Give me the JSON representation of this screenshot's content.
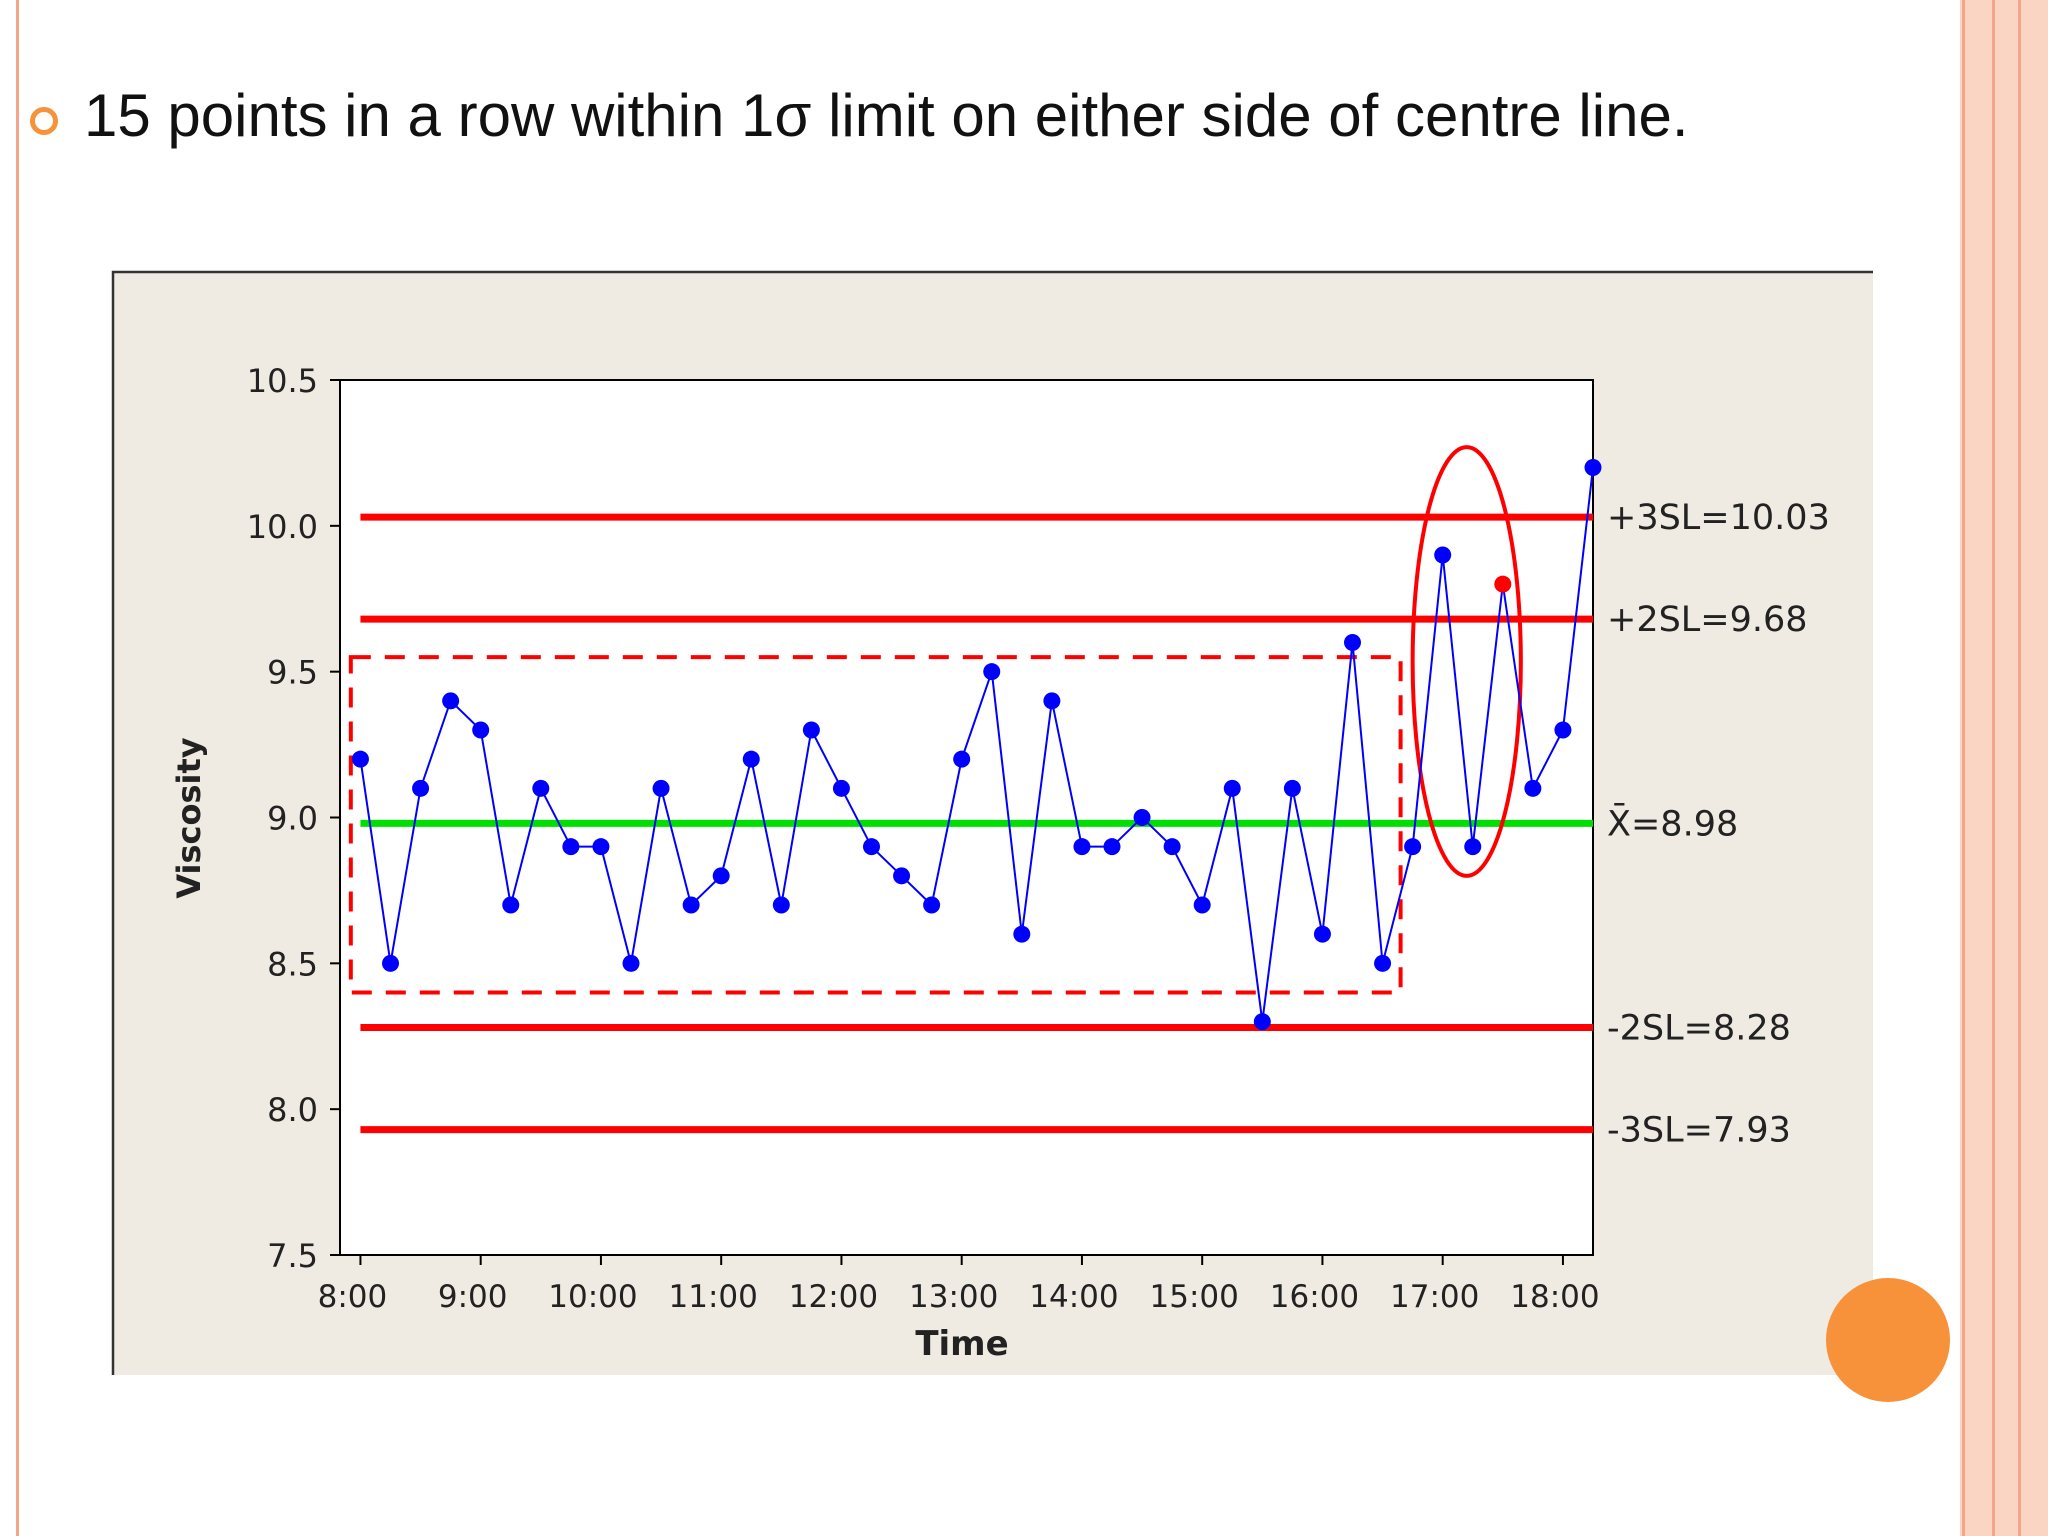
{
  "slide": {
    "heading": "15 points in a row within 1σ limit on either side of centre line.",
    "bullet_icon": "ring-bullet-icon",
    "colors": {
      "accent": "#f7923a",
      "frame_line": "#f4a58a",
      "frame_band": "#fbd5c4"
    }
  },
  "chart_data": {
    "type": "line",
    "xlabel": "Time",
    "ylabel": "Viscosity",
    "ylim": [
      7.5,
      10.5
    ],
    "xlim_hours": [
      7.83,
      18.25
    ],
    "x_ticks": [
      "8:00",
      "9:00",
      "10:00",
      "11:00",
      "12:00",
      "13:00",
      "14:00",
      "15:00",
      "16:00",
      "17:00",
      "18:00"
    ],
    "y_ticks": [
      "7.5",
      "8.0",
      "8.5",
      "9.0",
      "9.5",
      "10.0",
      "10.5"
    ],
    "y_tick_values": [
      7.5,
      8.0,
      8.5,
      9.0,
      9.5,
      10.0,
      10.5
    ],
    "grid": false,
    "series": [
      {
        "color": "#0000ff",
        "x": [
          "8:00",
          "8:15",
          "8:30",
          "8:45",
          "9:00",
          "9:15",
          "9:30",
          "9:45",
          "10:00",
          "10:15",
          "10:30",
          "10:45",
          "11:00",
          "11:15",
          "11:30",
          "11:45",
          "12:00",
          "12:15",
          "12:30",
          "12:45",
          "13:00",
          "13:15",
          "13:30",
          "13:45",
          "14:00",
          "14:15",
          "14:30",
          "14:45",
          "15:00",
          "15:15",
          "15:30",
          "15:45",
          "16:00",
          "16:15",
          "16:30",
          "16:45",
          "17:00",
          "17:15",
          "17:30",
          "17:45",
          "18:00",
          "18:15"
        ],
        "values": [
          9.2,
          8.5,
          9.1,
          9.4,
          9.3,
          8.7,
          9.1,
          8.9,
          8.9,
          8.5,
          9.1,
          8.7,
          8.8,
          9.2,
          8.7,
          9.3,
          9.1,
          8.9,
          8.8,
          8.7,
          9.2,
          9.5,
          8.6,
          9.4,
          8.9,
          8.9,
          9.0,
          8.9,
          8.7,
          9.1,
          8.3,
          9.1,
          8.6,
          9.6,
          8.5,
          8.9,
          9.9,
          8.9,
          9.8,
          9.1,
          9.3,
          10.2
        ],
        "highlight_index": 38,
        "highlight_color": "#ff0000"
      }
    ],
    "reference_lines": [
      {
        "label": "+3SL=10.03",
        "value": 10.03,
        "color": "#ff0000"
      },
      {
        "label": "+2SL=9.68",
        "value": 9.68,
        "color": "#ff0000"
      },
      {
        "label": "X̄=8.98",
        "value": 8.98,
        "color": "#00e000"
      },
      {
        "label": "-2SL=8.28",
        "value": 8.28,
        "color": "#ff0000"
      },
      {
        "label": "-3SL=7.93",
        "value": 7.93,
        "color": "#ff0000"
      }
    ],
    "annotations": [
      {
        "shape": "dashed-rectangle",
        "color": "#ff0000",
        "x_hours": [
          7.92,
          16.65
        ],
        "y": [
          8.4,
          9.55
        ]
      },
      {
        "shape": "ellipse",
        "color": "#ff0000",
        "x_hours": [
          16.75,
          17.65
        ],
        "y": [
          8.8,
          10.27
        ]
      }
    ],
    "plot_background": "#ffffff",
    "panel_background": "#efebe2"
  }
}
